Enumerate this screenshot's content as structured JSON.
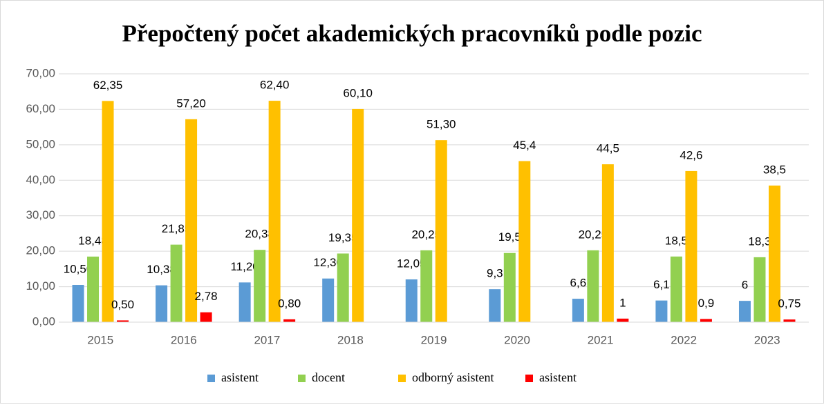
{
  "chart_data": {
    "type": "bar",
    "title": "Přepočtený počet akademických pracovníků podle pozic",
    "categories": [
      "2015",
      "2016",
      "2017",
      "2018",
      "2019",
      "2020",
      "2021",
      "2022",
      "2023"
    ],
    "series": [
      {
        "name": "asistent",
        "color": "#5b9bd5",
        "values": [
          10.5,
          10.38,
          11.2,
          12.3,
          12.05,
          9.3,
          6.6,
          6.1,
          6
        ],
        "value_labels": [
          "10,50",
          "10,38",
          "11,20",
          "12,30",
          "12,05",
          "9,3",
          "6,6",
          "6,1",
          "6"
        ]
      },
      {
        "name": "docent",
        "color": "#92d050",
        "values": [
          18.48,
          21.85,
          20.38,
          19.35,
          20.25,
          19.5,
          20.25,
          18.5,
          18.3
        ],
        "value_labels": [
          "18,48",
          "21,85",
          "20,38",
          "19,35",
          "20,25",
          "19,5",
          "20,25",
          "18,5",
          "18,3"
        ]
      },
      {
        "name": "odborný asistent",
        "color": "#ffc000",
        "values": [
          62.35,
          57.2,
          62.4,
          60.1,
          51.3,
          45.4,
          44.5,
          42.6,
          38.5
        ],
        "value_labels": [
          "62,35",
          "57,20",
          "62,40",
          "60,10",
          "51,30",
          "45,4",
          "44,5",
          "42,6",
          "38,5"
        ]
      },
      {
        "name": "asistent",
        "color": "#ff0000",
        "values": [
          0.5,
          2.78,
          0.8,
          null,
          null,
          null,
          1,
          0.9,
          0.75
        ],
        "value_labels": [
          "0,50",
          "2,78",
          "0,80",
          null,
          null,
          null,
          "1",
          "0,9",
          "0,75"
        ]
      }
    ],
    "ylim": [
      0,
      70
    ],
    "yticks": [
      {
        "value": 0,
        "label": "0,00"
      },
      {
        "value": 10,
        "label": "10,00"
      },
      {
        "value": 20,
        "label": "20,00"
      },
      {
        "value": 30,
        "label": "30,00"
      },
      {
        "value": 40,
        "label": "40,00"
      },
      {
        "value": 50,
        "label": "50,00"
      },
      {
        "value": 60,
        "label": "60,00"
      },
      {
        "value": 70,
        "label": "70,00"
      }
    ],
    "grid": true,
    "legend": "bottom"
  }
}
